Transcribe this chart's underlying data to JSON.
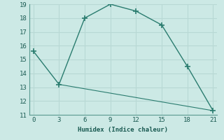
{
  "xlabel": "Humidex (Indice chaleur)",
  "line1_x": [
    0,
    3,
    6,
    9,
    12,
    15,
    18,
    21
  ],
  "line1_y": [
    15.6,
    13.2,
    18.0,
    19.0,
    18.5,
    17.5,
    14.5,
    11.3
  ],
  "line2_x": [
    3,
    21
  ],
  "line2_y": [
    13.2,
    11.3
  ],
  "line_color": "#2a7c6f",
  "bg_color": "#cce9e5",
  "grid_color": "#b8d8d4",
  "xlim": [
    -0.5,
    21.5
  ],
  "ylim": [
    11,
    19
  ],
  "xticks": [
    0,
    3,
    6,
    9,
    12,
    15,
    18,
    21
  ],
  "yticks": [
    11,
    12,
    13,
    14,
    15,
    16,
    17,
    18,
    19
  ],
  "marker": "+",
  "marker_size": 6,
  "linewidth1": 1.0,
  "linewidth2": 0.8
}
